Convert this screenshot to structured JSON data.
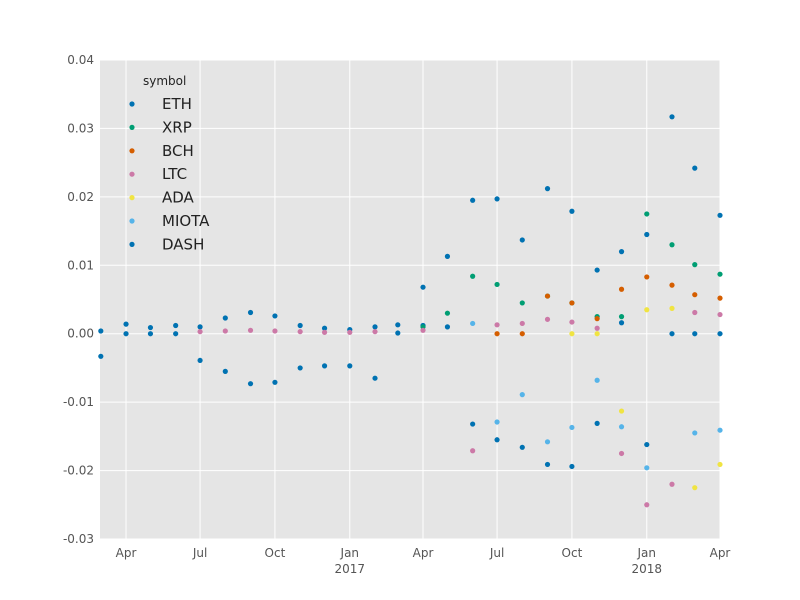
{
  "chart_data": {
    "type": "scatter",
    "title": "",
    "xlabel": "",
    "ylabel": "",
    "x_type": "date",
    "xlim": [
      "2016-02-29",
      "2018-04-01"
    ],
    "ylim": [
      -0.03,
      0.04
    ],
    "grid": true,
    "legend": {
      "title": "symbol",
      "position": "top-left"
    },
    "x_ticks": [
      {
        "date": "2016-04-01",
        "label": "Apr",
        "sub": ""
      },
      {
        "date": "2016-07-01",
        "label": "Jul",
        "sub": ""
      },
      {
        "date": "2016-10-01",
        "label": "Oct",
        "sub": ""
      },
      {
        "date": "2017-01-01",
        "label": "Jan",
        "sub": "2017"
      },
      {
        "date": "2017-04-01",
        "label": "Apr",
        "sub": ""
      },
      {
        "date": "2017-07-01",
        "label": "Jul",
        "sub": ""
      },
      {
        "date": "2017-10-01",
        "label": "Oct",
        "sub": ""
      },
      {
        "date": "2018-01-01",
        "label": "Jan",
        "sub": "2018"
      },
      {
        "date": "2018-04-01",
        "label": "Apr",
        "sub": ""
      }
    ],
    "y_ticks": [
      {
        "value": 0.04,
        "label": "0.04"
      },
      {
        "value": 0.03,
        "label": "0.03"
      },
      {
        "value": 0.02,
        "label": "0.02"
      },
      {
        "value": 0.01,
        "label": "0.01"
      },
      {
        "value": 0.0,
        "label": "0.00"
      },
      {
        "value": -0.01,
        "label": "-0.01"
      },
      {
        "value": -0.02,
        "label": "-0.02"
      },
      {
        "value": -0.03,
        "label": "-0.03"
      }
    ],
    "series": [
      {
        "name": "ETH",
        "color": "#0072b2",
        "points": [
          [
            "2016-03-01",
            0.0004
          ],
          [
            "2016-04-01",
            0.0014
          ],
          [
            "2016-05-01",
            0.0009
          ],
          [
            "2016-06-01",
            0.0012
          ],
          [
            "2016-07-01",
            0.001
          ],
          [
            "2016-08-01",
            0.0023
          ],
          [
            "2016-09-01",
            0.0031
          ],
          [
            "2016-10-01",
            0.0026
          ],
          [
            "2016-11-01",
            0.0012
          ],
          [
            "2016-12-01",
            0.0008
          ],
          [
            "2017-01-01",
            0.0006
          ],
          [
            "2017-02-01",
            0.001
          ],
          [
            "2017-03-01",
            0.0013
          ],
          [
            "2017-04-01",
            0.0012
          ],
          [
            "2017-05-01",
            0.0113
          ],
          [
            "2017-06-01",
            0.0195
          ],
          [
            "2017-07-01",
            0.0197
          ],
          [
            "2017-08-01",
            0.0137
          ],
          [
            "2017-09-01",
            0.0212
          ],
          [
            "2017-10-01",
            0.0179
          ],
          [
            "2017-11-01",
            0.0093
          ],
          [
            "2017-12-01",
            0.012
          ],
          [
            "2018-01-01",
            0.0145
          ],
          [
            "2018-02-01",
            0.0317
          ],
          [
            "2018-03-01",
            0.0242
          ],
          [
            "2018-04-01",
            0.0173
          ]
        ]
      },
      {
        "name": "XRP",
        "color": "#009e73",
        "points": [
          [
            "2017-04-01",
            0.001
          ],
          [
            "2017-05-01",
            0.003
          ],
          [
            "2017-06-01",
            0.0084
          ],
          [
            "2017-07-01",
            0.0072
          ],
          [
            "2017-08-01",
            0.0045
          ],
          [
            "2017-09-01",
            0.0055
          ],
          [
            "2017-10-01",
            0.0045
          ],
          [
            "2017-11-01",
            0.0025
          ],
          [
            "2017-12-01",
            0.0025
          ],
          [
            "2018-01-01",
            0.0175
          ],
          [
            "2018-02-01",
            0.013
          ],
          [
            "2018-03-01",
            0.0101
          ],
          [
            "2018-04-01",
            0.0087
          ]
        ]
      },
      {
        "name": "BCH",
        "color": "#d55e00",
        "points": [
          [
            "2017-07-01",
            0.0
          ],
          [
            "2017-08-01",
            0.0
          ],
          [
            "2017-09-01",
            0.0055
          ],
          [
            "2017-10-01",
            0.0045
          ],
          [
            "2017-11-01",
            0.0022
          ],
          [
            "2017-12-01",
            0.0065
          ],
          [
            "2018-01-01",
            0.0083
          ],
          [
            "2018-02-01",
            0.0071
          ],
          [
            "2018-03-01",
            0.0057
          ],
          [
            "2018-04-01",
            0.0052
          ]
        ]
      },
      {
        "name": "LTC",
        "color": "#cc79a7",
        "points": [
          [
            "2016-07-01",
            0.0003
          ],
          [
            "2016-08-01",
            0.0004
          ],
          [
            "2016-09-01",
            0.0005
          ],
          [
            "2016-10-01",
            0.0004
          ],
          [
            "2016-11-01",
            0.0003
          ],
          [
            "2016-12-01",
            0.0002
          ],
          [
            "2017-01-01",
            0.0002
          ],
          [
            "2017-02-01",
            0.0003
          ],
          [
            "2017-04-01",
            0.0005
          ],
          [
            "2017-06-01",
            -0.0171
          ],
          [
            "2017-07-01",
            0.0013
          ],
          [
            "2017-08-01",
            0.0015
          ],
          [
            "2017-09-01",
            0.0021
          ],
          [
            "2017-10-01",
            0.0017
          ],
          [
            "2017-11-01",
            0.0008
          ],
          [
            "2017-12-01",
            -0.0175
          ],
          [
            "2018-01-01",
            -0.025
          ],
          [
            "2018-02-01",
            -0.022
          ],
          [
            "2018-03-01",
            0.0031
          ],
          [
            "2018-04-01",
            0.0028
          ]
        ]
      },
      {
        "name": "ADA",
        "color": "#f0e442",
        "points": [
          [
            "2017-10-01",
            0.0
          ],
          [
            "2017-11-01",
            0.0
          ],
          [
            "2017-12-01",
            -0.0113
          ],
          [
            "2018-01-01",
            0.0035
          ],
          [
            "2018-02-01",
            0.0037
          ],
          [
            "2018-03-01",
            -0.0225
          ],
          [
            "2018-04-01",
            -0.0191
          ]
        ]
      },
      {
        "name": "MIOTA",
        "color": "#56b4e9",
        "points": [
          [
            "2017-06-01",
            0.0015
          ],
          [
            "2017-07-01",
            -0.0129
          ],
          [
            "2017-08-01",
            -0.0089
          ],
          [
            "2017-09-01",
            -0.0158
          ],
          [
            "2017-10-01",
            -0.0137
          ],
          [
            "2017-11-01",
            -0.0068
          ],
          [
            "2017-12-01",
            -0.0136
          ],
          [
            "2018-01-01",
            -0.0196
          ],
          [
            "2018-03-01",
            -0.0145
          ],
          [
            "2018-04-01",
            -0.0141
          ]
        ]
      },
      {
        "name": "DASH",
        "color": "#0072b2",
        "points": [
          [
            "2016-03-01",
            -0.0033
          ],
          [
            "2016-04-01",
            0.0
          ],
          [
            "2016-05-01",
            0.0
          ],
          [
            "2016-06-01",
            0.0
          ],
          [
            "2016-07-01",
            -0.0039
          ],
          [
            "2016-08-01",
            -0.0055
          ],
          [
            "2016-09-01",
            -0.0073
          ],
          [
            "2016-10-01",
            -0.0071
          ],
          [
            "2016-11-01",
            -0.005
          ],
          [
            "2016-12-01",
            -0.0047
          ],
          [
            "2017-01-01",
            -0.0047
          ],
          [
            "2017-02-01",
            -0.0065
          ],
          [
            "2017-03-01",
            0.0001
          ],
          [
            "2017-04-01",
            0.0068
          ],
          [
            "2017-05-01",
            0.001
          ],
          [
            "2017-06-01",
            -0.0132
          ],
          [
            "2017-07-01",
            -0.0155
          ],
          [
            "2017-08-01",
            -0.0166
          ],
          [
            "2017-09-01",
            -0.0191
          ],
          [
            "2017-10-01",
            -0.0194
          ],
          [
            "2017-11-01",
            -0.0131
          ],
          [
            "2017-12-01",
            0.0016
          ],
          [
            "2018-01-01",
            -0.0162
          ],
          [
            "2018-02-01",
            0.0
          ],
          [
            "2018-03-01",
            0.0
          ],
          [
            "2018-04-01",
            0.0
          ]
        ]
      }
    ]
  }
}
